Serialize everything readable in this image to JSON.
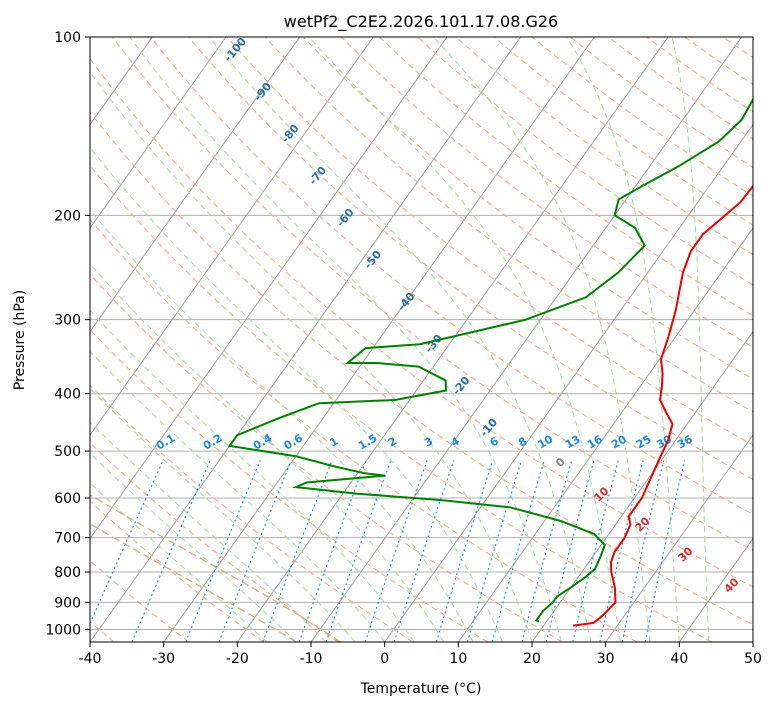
{
  "chart_data": {
    "type": "skew-t log-p",
    "title": "wetPf2_C2E2.2026.101.17.08.G26",
    "xlabel": "Temperature (°C)",
    "ylabel": "Pressure (hPa)",
    "xlim": [
      -40,
      50
    ],
    "ylim": [
      1050,
      100
    ],
    "x_ticks": [
      -40,
      -30,
      -20,
      -10,
      0,
      10,
      20,
      30,
      40,
      50
    ],
    "y_ticks": [
      1000,
      900,
      800,
      700,
      600,
      500,
      400,
      300,
      200,
      100
    ],
    "colors": {
      "temperature": "#ee0000",
      "dewpoint": "#008000",
      "isotherm": "#999999",
      "dry_adiabat": "#f4a582",
      "moist_adiabat": "#a6d8a0",
      "mixing_ratio": "#1e88e5",
      "special": "#d2b48c"
    },
    "series": [
      {
        "name": "Temperature",
        "points": [
          [
            24,
            985
          ],
          [
            26.5,
            975
          ],
          [
            27,
            950
          ],
          [
            27.5,
            900
          ],
          [
            26,
            850
          ],
          [
            24,
            800
          ],
          [
            23,
            770
          ],
          [
            22.5,
            740
          ],
          [
            22.5,
            700
          ],
          [
            22,
            665
          ],
          [
            21,
            645
          ],
          [
            21,
            600
          ],
          [
            20.2,
            550
          ],
          [
            19.5,
            510
          ],
          [
            19,
            480
          ],
          [
            18,
            450
          ],
          [
            16,
            430
          ],
          [
            14,
            410
          ],
          [
            13,
            390
          ],
          [
            11.8,
            370
          ],
          [
            10.2,
            350
          ],
          [
            9,
            320
          ],
          [
            7.5,
            290
          ],
          [
            6.2,
            270
          ],
          [
            4.8,
            250
          ],
          [
            3.8,
            230
          ],
          [
            3.8,
            215
          ],
          [
            5,
            200
          ],
          [
            5.8,
            190
          ],
          [
            6,
            175
          ],
          [
            5.7,
            160
          ],
          [
            6.2,
            145
          ],
          [
            6.5,
            130
          ],
          [
            6.2,
            115
          ],
          [
            5.5,
            105
          ],
          [
            5.2,
            100
          ]
        ]
      },
      {
        "name": "Dewpoint",
        "points": [
          [
            19,
            970
          ],
          [
            18.5,
            965
          ],
          [
            18.5,
            930
          ],
          [
            19,
            900
          ],
          [
            19,
            880
          ],
          [
            20,
            850
          ],
          [
            21,
            815
          ],
          [
            21.5,
            790
          ],
          [
            21,
            750
          ],
          [
            20.5,
            720
          ],
          [
            18,
            690
          ],
          [
            12,
            655
          ],
          [
            4,
            622
          ],
          [
            -6,
            605
          ],
          [
            -18,
            590
          ],
          [
            -27,
            575
          ],
          [
            -26,
            565
          ],
          [
            -16,
            550
          ],
          [
            -19,
            545
          ],
          [
            -24,
            530
          ],
          [
            -30,
            510
          ],
          [
            -40,
            490
          ],
          [
            -40,
            470
          ],
          [
            -36,
            440
          ],
          [
            -32,
            415
          ],
          [
            -22,
            410
          ],
          [
            -16,
            395
          ],
          [
            -17,
            380
          ],
          [
            -22,
            360
          ],
          [
            -28,
            355
          ],
          [
            -32,
            355
          ],
          [
            -31,
            335
          ],
          [
            -24,
            330
          ],
          [
            -12,
            300
          ],
          [
            -6,
            275
          ],
          [
            -4,
            250
          ],
          [
            -3,
            225
          ],
          [
            -6,
            210
          ],
          [
            -10,
            200
          ],
          [
            -11,
            188
          ],
          [
            -9,
            178
          ],
          [
            -6,
            165
          ],
          [
            -3,
            150
          ],
          [
            -2,
            138
          ],
          [
            -2.5,
            126
          ],
          [
            0,
            115
          ],
          [
            4.3,
            100
          ]
        ]
      }
    ],
    "dry_adiabat_labels": [
      "-100",
      "-90",
      "-80",
      "-70",
      "-60",
      "-50",
      "-40",
      "-30",
      "-20",
      "-10"
    ],
    "moist_adiabat_labels": [
      "0",
      "10",
      "20",
      "30",
      "40"
    ],
    "mixing_ratio_labels": [
      "0.1",
      "0.2",
      "0.4",
      "0.6",
      "1",
      "1.5",
      "2",
      "3",
      "4",
      "6",
      "8",
      "10",
      "13",
      "16",
      "20",
      "25",
      "30",
      "36"
    ]
  }
}
